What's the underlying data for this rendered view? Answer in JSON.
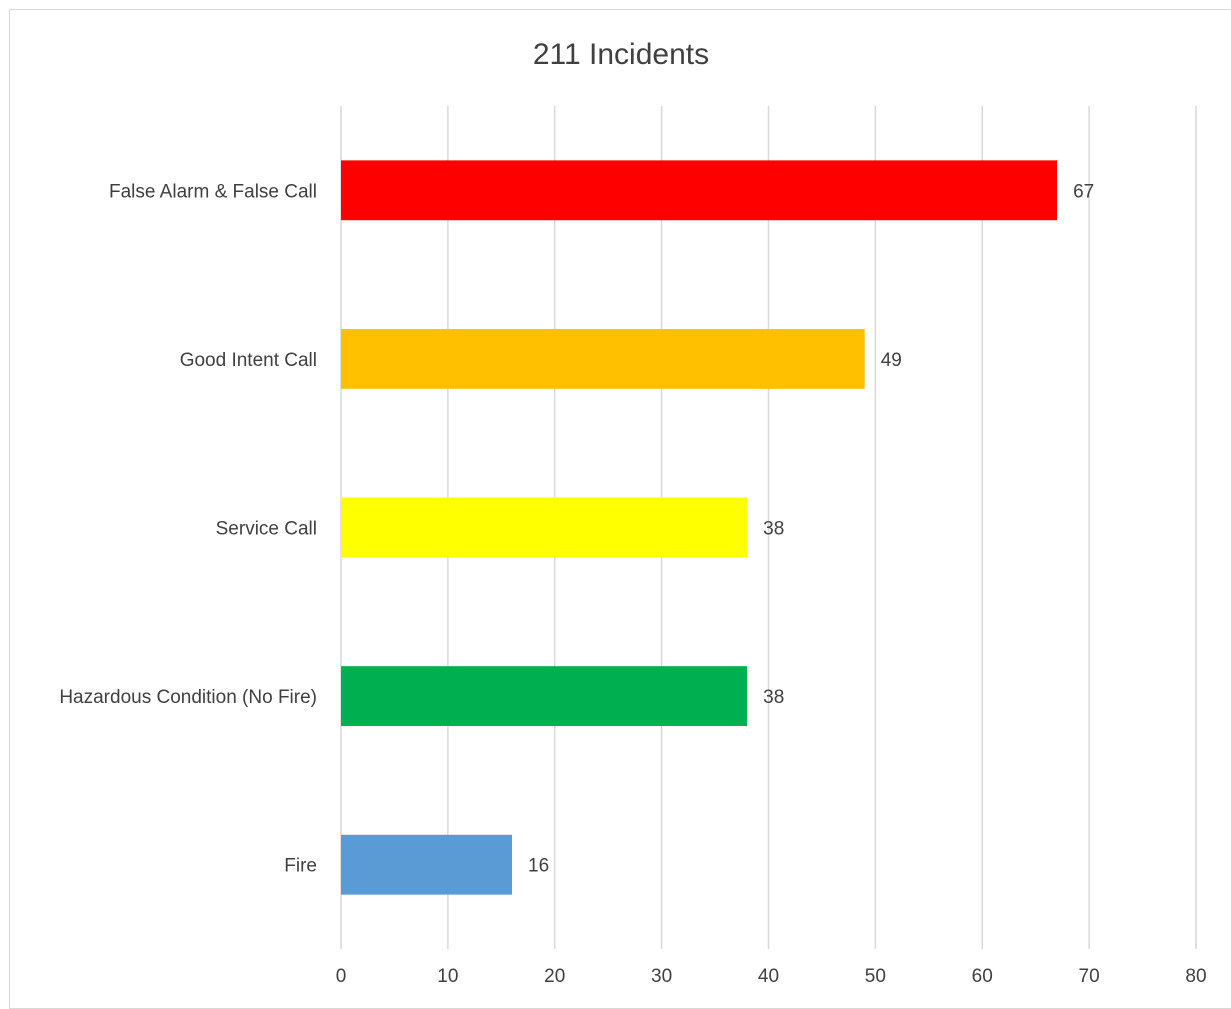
{
  "chart_data": {
    "type": "bar",
    "orientation": "horizontal",
    "title": "211 Incidents",
    "xlabel": "",
    "ylabel": "",
    "categories": [
      "False Alarm & False Call",
      "Good Intent Call",
      "Service Call",
      "Hazardous Condition (No Fire)",
      "Fire"
    ],
    "values": [
      67,
      49,
      38,
      38,
      16
    ],
    "colors": [
      "#ff0000",
      "#ffc000",
      "#ffff00",
      "#00b050",
      "#5b9bd5"
    ],
    "xlim": [
      0,
      80
    ],
    "ticks": [
      "0",
      "10",
      "20",
      "30",
      "40",
      "50",
      "60",
      "70",
      "80"
    ],
    "grid": true,
    "data_labels": true,
    "legend": "none"
  }
}
